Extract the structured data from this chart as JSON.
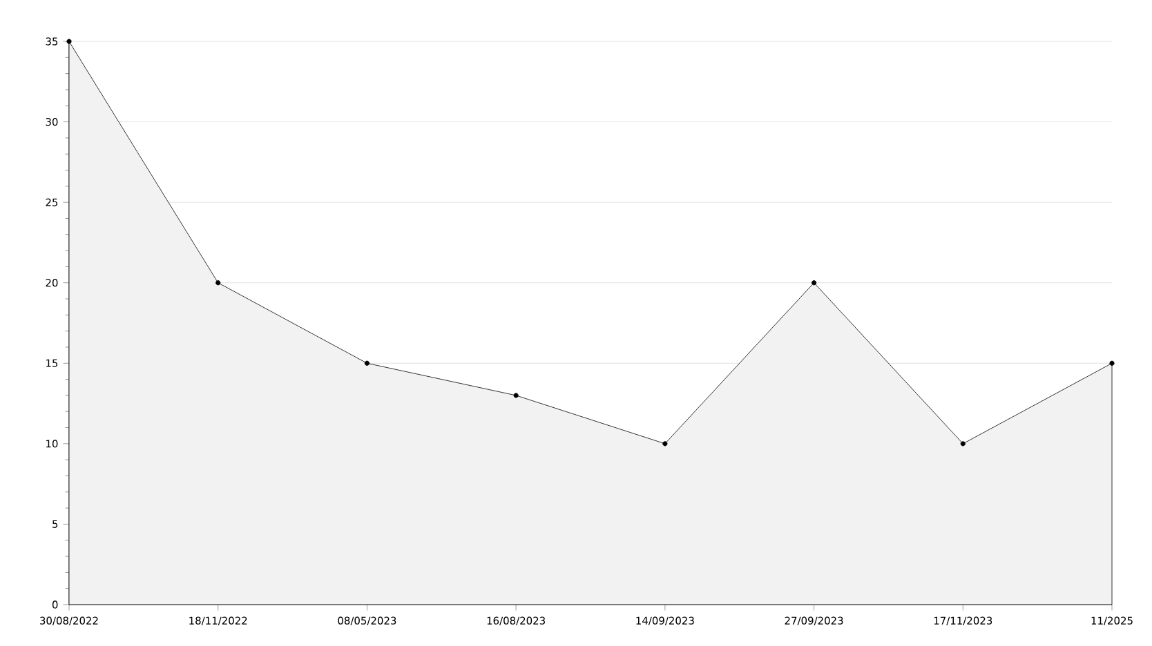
{
  "chart_data": {
    "type": "area",
    "categories": [
      "30/08/2022",
      "18/11/2022",
      "08/05/2023",
      "16/08/2023",
      "14/09/2023",
      "27/09/2023",
      "17/11/2023",
      "11/2025"
    ],
    "series": [
      {
        "color": "#000000",
        "values": [
          35,
          20,
          15,
          13,
          10,
          20,
          10,
          15
        ]
      }
    ],
    "ylim": [
      0,
      35
    ],
    "yticks": [
      0,
      5,
      10,
      15,
      20,
      25,
      30,
      35
    ],
    "grid": "y",
    "marker": "circle",
    "line_style": "solid"
  }
}
